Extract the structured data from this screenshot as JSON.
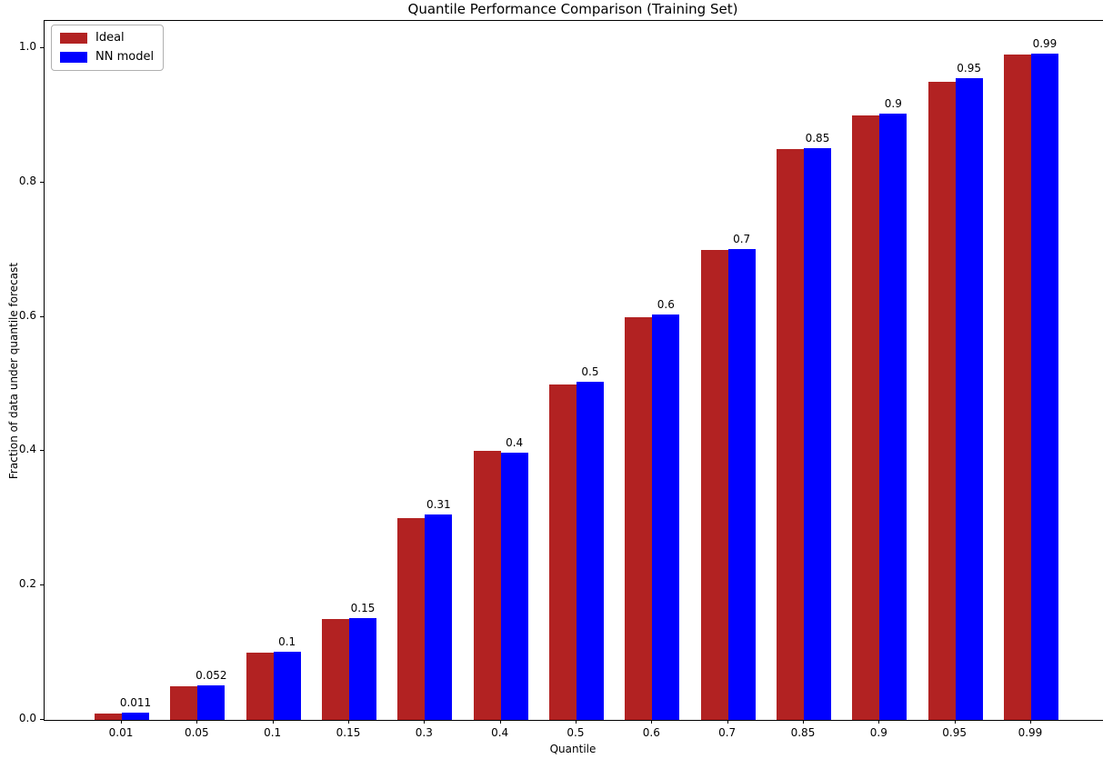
{
  "figure": {
    "kind": "matplotlib-style bar chart"
  },
  "chart_data": {
    "type": "bar",
    "title": "Quantile Performance Comparison (Training Set)",
    "xlabel": "Quantile",
    "ylabel": "Fraction of data under quantile forecast",
    "categories": [
      "0.01",
      "0.05",
      "0.1",
      "0.15",
      "0.3",
      "0.4",
      "0.5",
      "0.6",
      "0.7",
      "0.85",
      "0.9",
      "0.95",
      "0.99"
    ],
    "series": [
      {
        "name": "Ideal",
        "color": "#b22222",
        "values": [
          0.01,
          0.05,
          0.1,
          0.15,
          0.3,
          0.4,
          0.5,
          0.6,
          0.7,
          0.85,
          0.9,
          0.95,
          0.99
        ]
      },
      {
        "name": "NN model",
        "color": "#0000ff",
        "values": [
          0.011,
          0.052,
          0.102,
          0.152,
          0.306,
          0.398,
          0.503,
          0.604,
          0.701,
          0.851,
          0.903,
          0.955,
          0.992
        ]
      }
    ],
    "bar_value_labels": [
      "0.011",
      "0.052",
      "0.1",
      "0.15",
      "0.31",
      "0.4",
      "0.5",
      "0.6",
      "0.7",
      "0.85",
      "0.9",
      "0.95",
      "0.99"
    ],
    "yticks": [
      0.0,
      0.2,
      0.4,
      0.6,
      0.8,
      1.0
    ],
    "ytick_labels": [
      "0.0",
      "0.2",
      "0.4",
      "0.6",
      "0.8",
      "1.0"
    ],
    "ylim": [
      0,
      1.04
    ],
    "grid": false,
    "legend_position": "upper left"
  }
}
